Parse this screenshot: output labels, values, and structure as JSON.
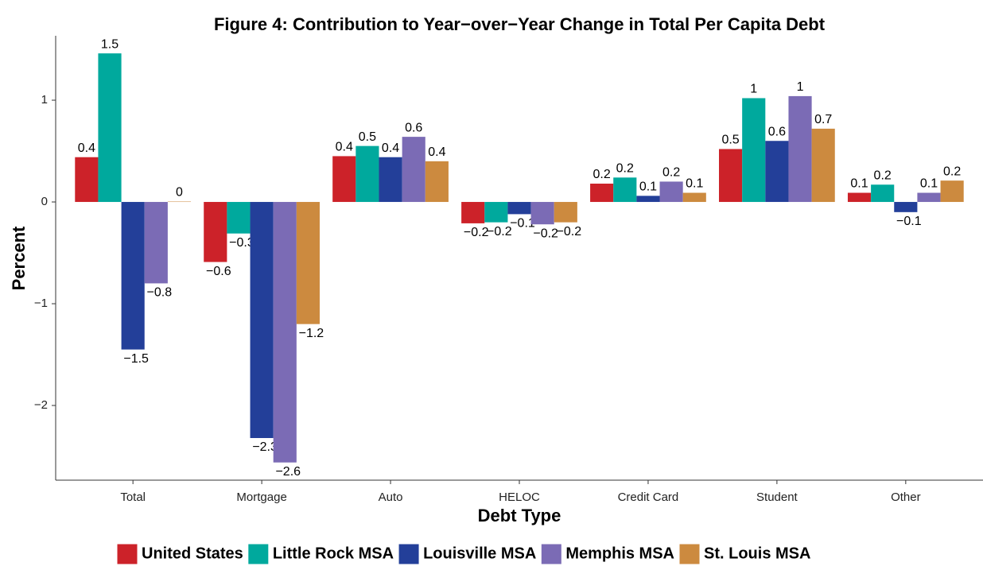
{
  "chart_data": {
    "type": "bar",
    "title": "Figure 4: Contribution to Year−over−Year Change in Total Per Capita Debt",
    "x_label": "Debt Type",
    "y_label": "Percent",
    "categories": [
      "Total",
      "Mortgage",
      "Auto",
      "HELOC",
      "Credit Card",
      "Student",
      "Other"
    ],
    "ylim": [
      -2.734,
      1.633
    ],
    "yticks": [
      {
        "value": -2,
        "label": "−2"
      },
      {
        "value": -1,
        "label": "−1"
      },
      0,
      1
    ],
    "grid": false,
    "legend_position": "bottom",
    "series": [
      {
        "name": "United States",
        "color": "#cc2229",
        "values": [
          0.44,
          -0.59,
          0.45,
          -0.21,
          0.18,
          0.52,
          0.09
        ],
        "value_labels": [
          "0.4",
          "−0.6",
          "0.4",
          "−0.2",
          "0.2",
          "0.5",
          "0.1"
        ]
      },
      {
        "name": "Little Rock MSA",
        "color": "#00a99d",
        "values": [
          1.46,
          -0.31,
          0.55,
          -0.2,
          0.24,
          1.02,
          0.17
        ],
        "value_labels": [
          "1.5",
          "−0.3",
          "0.5",
          "−0.2",
          "0.2",
          "1",
          "0.2"
        ]
      },
      {
        "name": "Louisville MSA",
        "color": "#233f99",
        "values": [
          -1.45,
          -2.32,
          0.44,
          -0.12,
          0.06,
          0.6,
          -0.1
        ],
        "value_labels": [
          "−1.5",
          "−2.3",
          "0.4",
          "−0.1",
          "0.1",
          "0.6",
          "−0.1"
        ]
      },
      {
        "name": "Memphis MSA",
        "color": "#7b6bb5",
        "values": [
          -0.8,
          -2.56,
          0.64,
          -0.22,
          0.2,
          1.04,
          0.09
        ],
        "value_labels": [
          "−0.8",
          "−2.6",
          "0.6",
          "−0.2",
          "0.2",
          "1",
          "0.1"
        ]
      },
      {
        "name": "St. Louis MSA",
        "color": "#cc8a3f",
        "values": [
          0.004,
          -1.2,
          0.4,
          -0.2,
          0.09,
          0.72,
          0.21
        ],
        "value_labels": [
          "0",
          "−1.2",
          "0.4",
          "−0.2",
          "0.1",
          "0.7",
          "0.2"
        ]
      }
    ]
  }
}
